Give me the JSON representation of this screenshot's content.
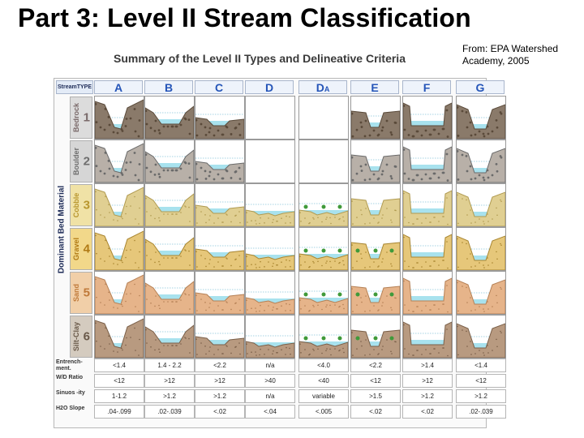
{
  "slide_title": "Part 3: Level II Stream Classification",
  "source_line1": "From: EPA Watershed",
  "source_line2": "Academy, 2005",
  "chart_title": "Summary of the Level II Types and Delineative Criteria",
  "stream_type_label": "StreamTYPE",
  "dominant_label": "Dominant Bed Material",
  "stream_types": [
    "A",
    "B",
    "C",
    "D",
    "D",
    "E",
    "F",
    "G"
  ],
  "da_subscript": "A",
  "materials": [
    {
      "name": "Bedrock",
      "num": "1",
      "color": "#7a6a6a",
      "bg": "#dcdcdc"
    },
    {
      "name": "Boulder",
      "num": "2",
      "color": "#6e6e6e",
      "bg": "#d6d6d6"
    },
    {
      "name": "Cobble",
      "num": "3",
      "color": "#b8962e",
      "bg": "#f0e2a6"
    },
    {
      "name": "Gravel",
      "num": "4",
      "color": "#b07a14",
      "bg": "#f2d88a"
    },
    {
      "name": "Sand",
      "num": "5",
      "color": "#c07a3a",
      "bg": "#f1cfa8"
    },
    {
      "name": "Silt-Clay",
      "num": "6",
      "color": "#6a5a4a",
      "bg": "#d4cbbf"
    }
  ],
  "criteria": [
    {
      "label": "Entrench-ment.",
      "values": [
        "<1.4",
        "1.4 - 2.2",
        "<2.2",
        "n/a",
        "<4.0",
        "<2.2",
        ">1.4",
        "<1.4"
      ]
    },
    {
      "label": "W/D Ratio",
      "values": [
        "<12",
        ">12",
        ">12",
        ">40",
        "<40",
        "<12",
        ">12",
        "<12"
      ]
    },
    {
      "label": "Sinuos -ity",
      "values": [
        "1-1.2",
        ">1.2",
        ">1.2",
        "n/a",
        "variable",
        ">1.5",
        ">1.2",
        ">1.2"
      ]
    },
    {
      "label": "H2O Slope",
      "values": [
        ".04-.099",
        ".02-.039",
        "<.02",
        "<.04",
        "<.005",
        "<.02",
        "<.02",
        ".02-.039"
      ]
    }
  ],
  "colors": {
    "header_text": "#2555b8",
    "water": "#a8e2ee",
    "water_line": "#4aa8c8",
    "grid": "#9a9a9a"
  }
}
